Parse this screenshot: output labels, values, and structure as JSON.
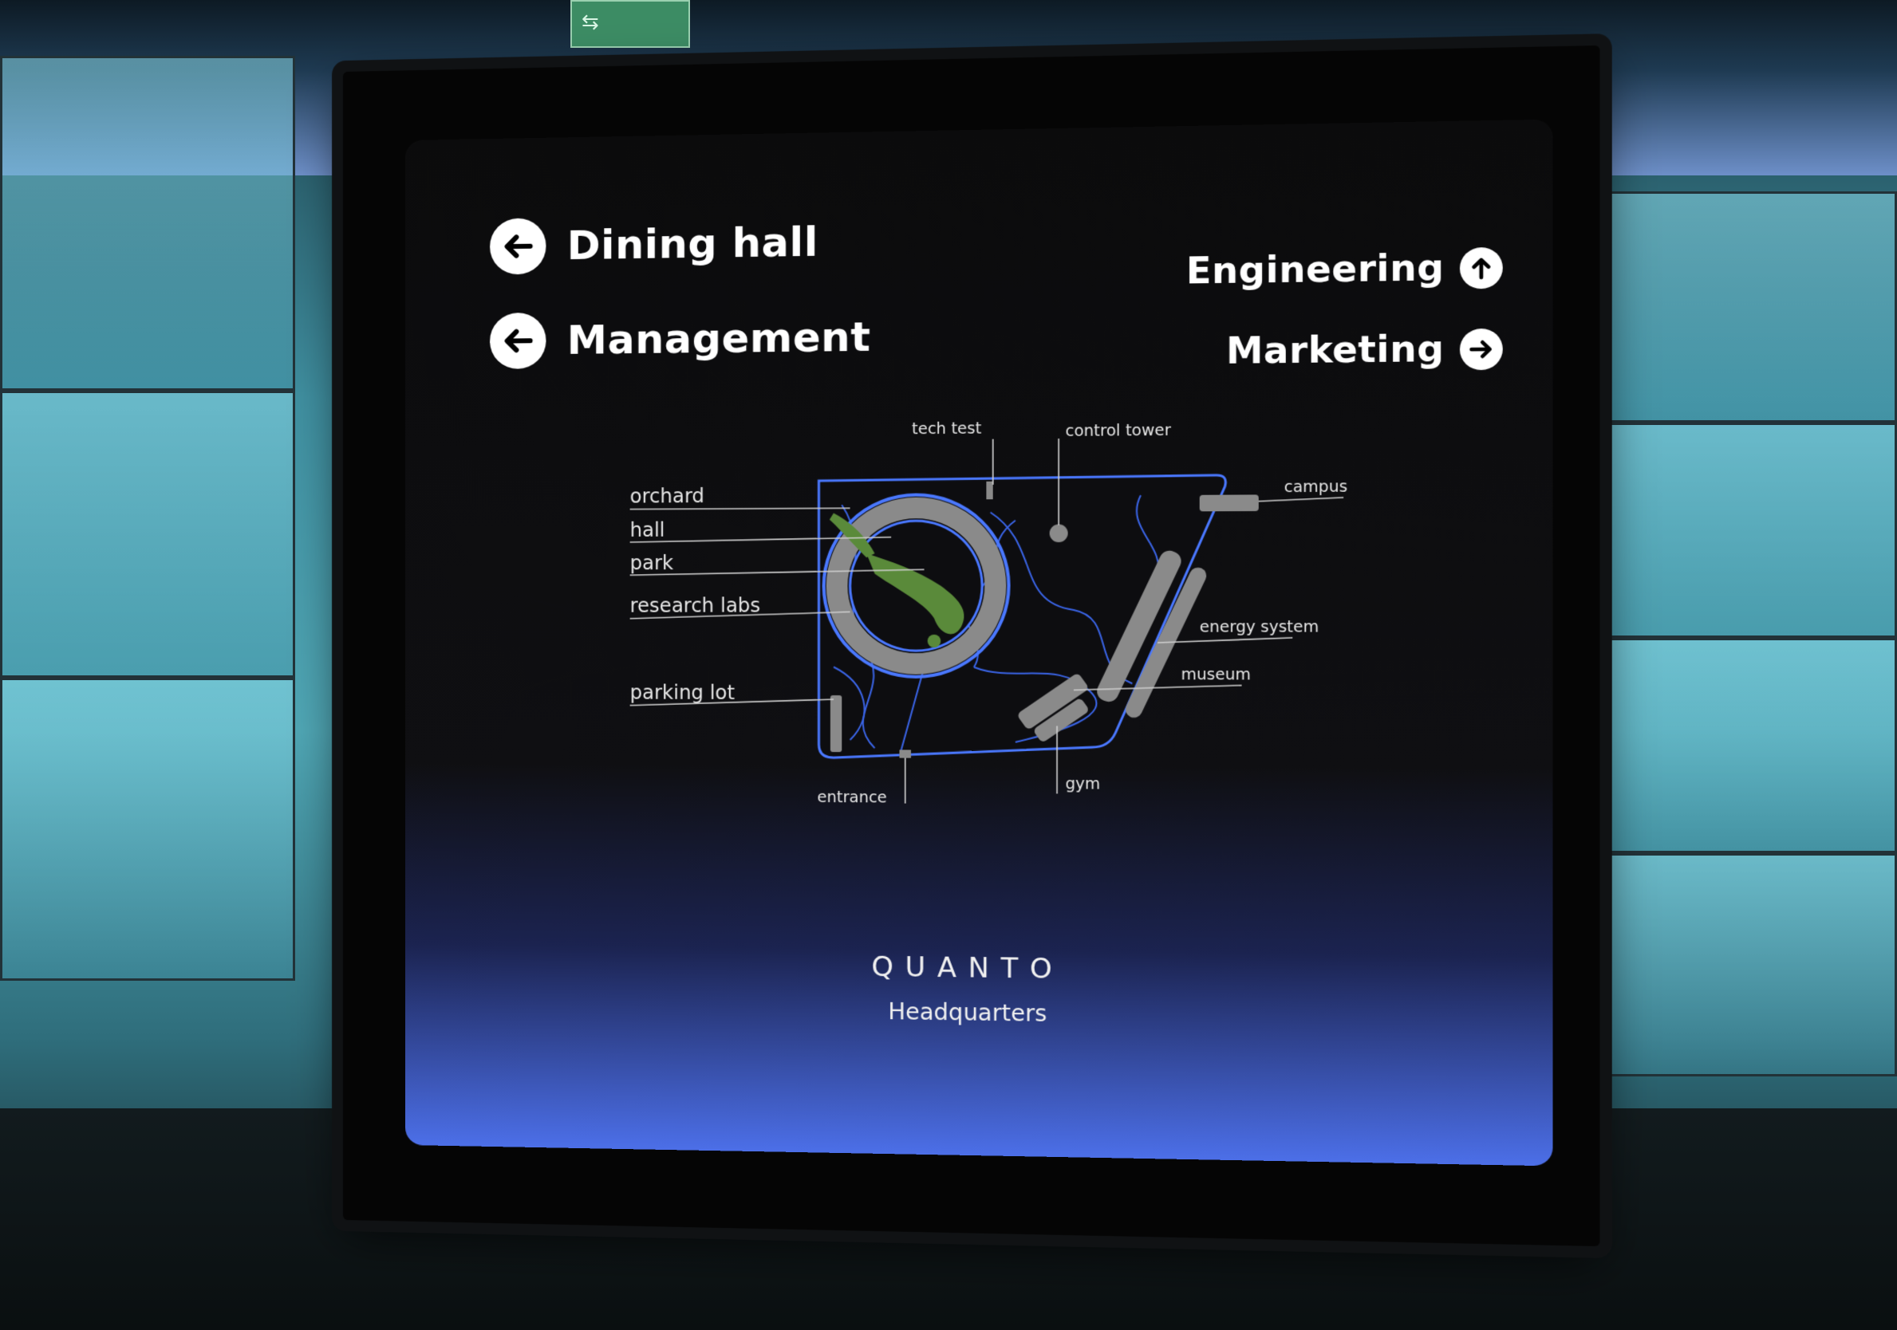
{
  "signs": {
    "left": [
      {
        "label": "Dining hall",
        "icon": "arrow-left-icon"
      },
      {
        "label": "Management",
        "icon": "arrow-left-icon"
      }
    ],
    "right": [
      {
        "label": "Engineering",
        "icon": "arrow-up-icon"
      },
      {
        "label": "Marketing",
        "icon": "arrow-right-icon"
      }
    ]
  },
  "map": {
    "labels": {
      "tech_test": "tech test",
      "control_tower": "control tower",
      "orchard": "orchard",
      "hall": "hall",
      "park": "park",
      "research_labs": "research labs",
      "parking_lot": "parking lot",
      "campus": "campus",
      "energy_system": "energy system",
      "museum": "museum",
      "entrance": "entrance",
      "gym": "gym"
    },
    "colors": {
      "outline": "#3f6ff0",
      "building": "#8a8a8a",
      "green": "#5a8a3a"
    }
  },
  "brand": {
    "name": "QUANTO",
    "subtitle": "Headquarters"
  },
  "colors": {
    "background": "#0b0b0c",
    "gradient_bottom": "#4c6fe8",
    "text": "#ffffff"
  }
}
